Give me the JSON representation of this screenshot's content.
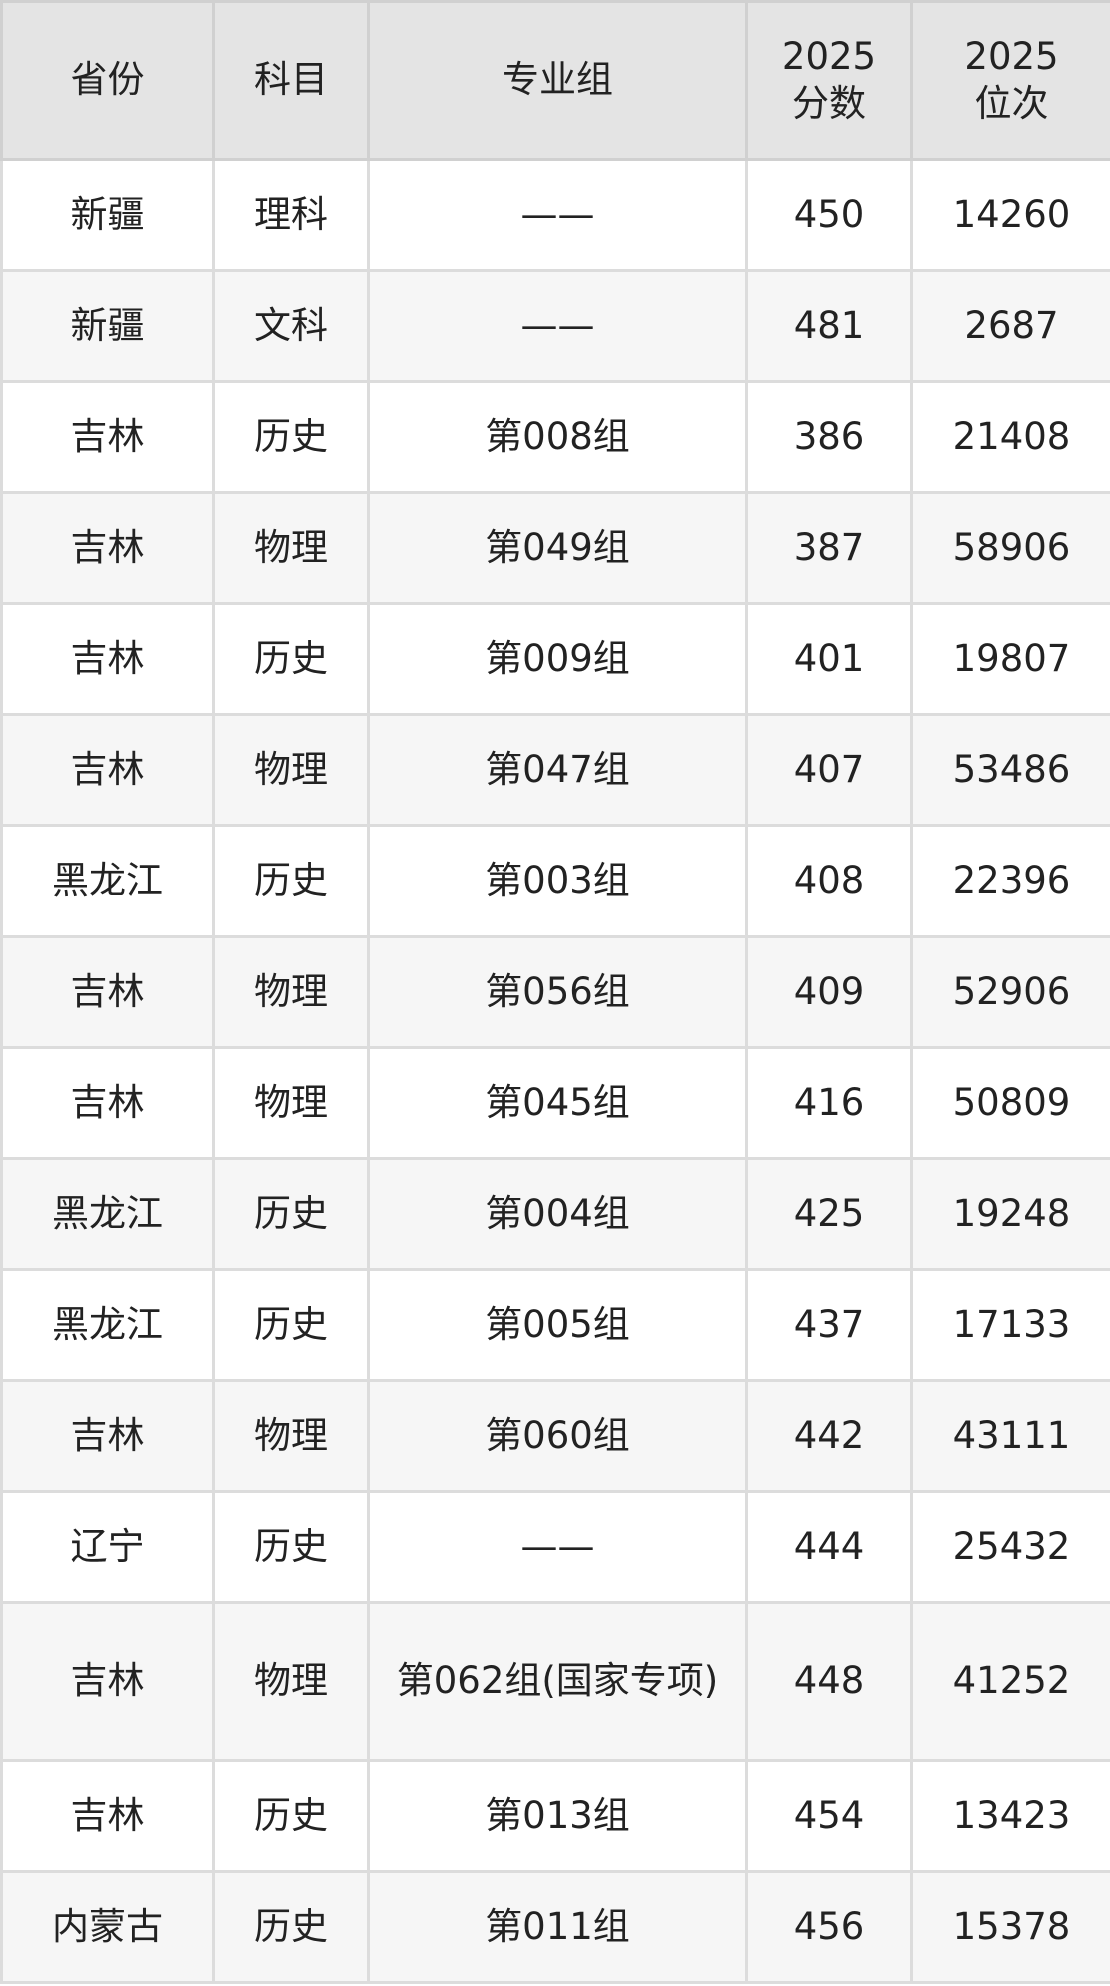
{
  "table": {
    "headers": [
      "省份",
      "科目",
      "专业组",
      "2025\n分数",
      "2025\n位次"
    ],
    "rows": [
      [
        "新疆",
        "理科",
        "——",
        "450",
        "14260"
      ],
      [
        "新疆",
        "文科",
        "——",
        "481",
        "2687"
      ],
      [
        "吉林",
        "历史",
        "第008组",
        "386",
        "21408"
      ],
      [
        "吉林",
        "物理",
        "第049组",
        "387",
        "58906"
      ],
      [
        "吉林",
        "历史",
        "第009组",
        "401",
        "19807"
      ],
      [
        "吉林",
        "物理",
        "第047组",
        "407",
        "53486"
      ],
      [
        "黑龙江",
        "历史",
        "第003组",
        "408",
        "22396"
      ],
      [
        "吉林",
        "物理",
        "第056组",
        "409",
        "52906"
      ],
      [
        "吉林",
        "物理",
        "第045组",
        "416",
        "50809"
      ],
      [
        "黑龙江",
        "历史",
        "第004组",
        "425",
        "19248"
      ],
      [
        "黑龙江",
        "历史",
        "第005组",
        "437",
        "17133"
      ],
      [
        "吉林",
        "物理",
        "第060组",
        "442",
        "43111"
      ],
      [
        "辽宁",
        "历史",
        "——",
        "444",
        "25432"
      ],
      [
        "吉林",
        "物理",
        "第062组(国家专项)",
        "448",
        "41252"
      ],
      [
        "吉林",
        "历史",
        "第013组",
        "454",
        "13423"
      ],
      [
        "内蒙古",
        "历史",
        "第011组",
        "456",
        "15378"
      ]
    ]
  }
}
